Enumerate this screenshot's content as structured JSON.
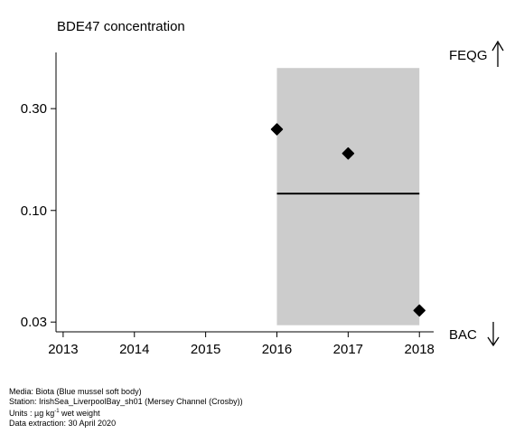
{
  "chart_data": {
    "type": "scatter",
    "title": "BDE47 concentration",
    "xlabel": "",
    "ylabel": "",
    "x_ticks": [
      2013,
      2014,
      2015,
      2016,
      2017,
      2018
    ],
    "y_ticks": [
      0.03,
      0.1,
      0.3
    ],
    "y_tick_labels": [
      "0.03",
      "0.10",
      "0.30"
    ],
    "y_scale": "log",
    "xlim": [
      2012.9,
      2018.2
    ],
    "ylim": [
      0.027,
      0.55
    ],
    "points": [
      {
        "x": 2016,
        "y": 0.24
      },
      {
        "x": 2017,
        "y": 0.185
      },
      {
        "x": 2018,
        "y": 0.034
      }
    ],
    "band": {
      "x_start": 2016,
      "x_end": 2018,
      "y_low": 0.029,
      "y_high": 0.465,
      "color": "#cccccc"
    },
    "trend_line": {
      "x_start": 2016,
      "x_end": 2018,
      "y": 0.12
    },
    "grid": false,
    "legend": "none"
  },
  "right_labels": {
    "upper": "FEQG",
    "lower": "BAC"
  },
  "footer": {
    "media": "Media: Biota (Blue mussel soft body)",
    "station": "Station: IrishSea_LiverpoolBay_sh01 (Mersey Channel (Crosby))",
    "units_prefix": "Units : µg kg",
    "units_exp": "-1",
    "units_suffix": " wet weight",
    "extraction": "Data extraction: 30 April 2020"
  }
}
